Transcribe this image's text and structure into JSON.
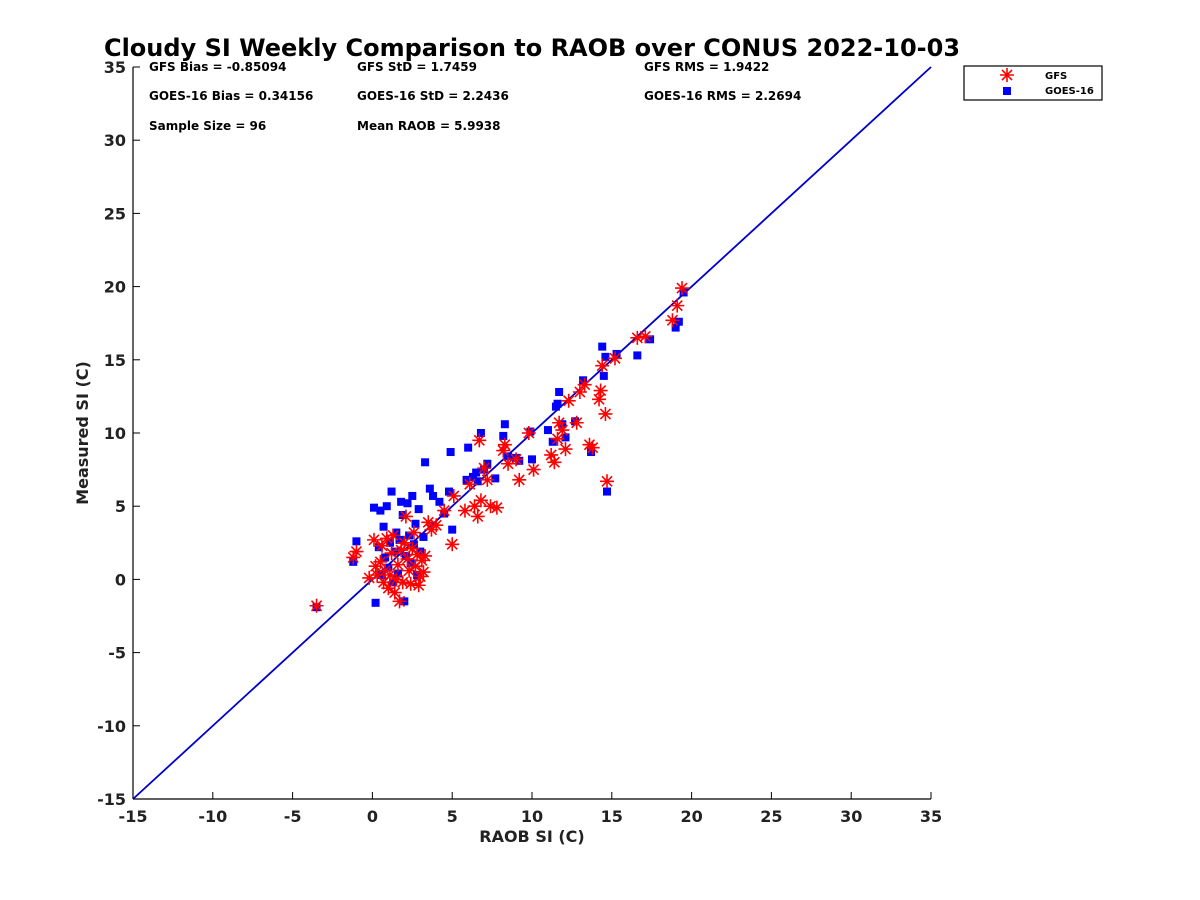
{
  "chart_data": {
    "type": "scatter",
    "title": "Cloudy SI Weekly Comparison to RAOB over CONUS 2022-10-03",
    "xlabel": "RAOB SI (C)",
    "ylabel": "Measured SI (C)",
    "xlim": [
      -15,
      35
    ],
    "ylim": [
      -15,
      35
    ],
    "xticks": [
      -15,
      -10,
      -5,
      0,
      5,
      10,
      15,
      20,
      25,
      30,
      35
    ],
    "yticks": [
      -15,
      -10,
      -5,
      0,
      5,
      10,
      15,
      20,
      25,
      30,
      35
    ],
    "grid": false,
    "legend_position": "outside-top-right",
    "reference_line": {
      "from": [
        -15,
        -15
      ],
      "to": [
        35,
        35
      ],
      "color": "#0000cc"
    },
    "stats": [
      {
        "text": "GFS Bias = -0.85094"
      },
      {
        "text": "GFS StD = 1.7459"
      },
      {
        "text": "GFS RMS = 1.9422"
      },
      {
        "text": "GOES-16 Bias = 0.34156"
      },
      {
        "text": "GOES-16 StD = 2.2436"
      },
      {
        "text": "GOES-16 RMS = 2.2694"
      },
      {
        "text": "Sample Size = 96"
      },
      {
        "text": "Mean RAOB = 5.9938"
      }
    ],
    "series": [
      {
        "name": "GFS",
        "marker": "asterisk",
        "color": "#ff0000",
        "points": [
          [
            -3.5,
            -1.8
          ],
          [
            -1.2,
            1.5
          ],
          [
            -1.0,
            1.9
          ],
          [
            -0.2,
            0.1
          ],
          [
            0.1,
            2.7
          ],
          [
            0.2,
            0.9
          ],
          [
            0.3,
            0.3
          ],
          [
            0.5,
            1.2
          ],
          [
            0.6,
            2.3
          ],
          [
            0.7,
            -0.2
          ],
          [
            0.8,
            0.6
          ],
          [
            0.9,
            2.8
          ],
          [
            1.0,
            -0.6
          ],
          [
            1.1,
            0.3
          ],
          [
            1.2,
            1.8
          ],
          [
            1.3,
            3.0
          ],
          [
            1.4,
            -0.9
          ],
          [
            1.5,
            0.0
          ],
          [
            1.6,
            1.0
          ],
          [
            1.7,
            -1.5
          ],
          [
            1.8,
            2.0
          ],
          [
            1.9,
            -0.2
          ],
          [
            2.0,
            2.5
          ],
          [
            2.1,
            4.3
          ],
          [
            2.2,
            1.4
          ],
          [
            2.3,
            0.6
          ],
          [
            2.4,
            -0.3
          ],
          [
            2.5,
            2.1
          ],
          [
            2.6,
            3.2
          ],
          [
            2.7,
            0.9
          ],
          [
            2.8,
            1.7
          ],
          [
            2.9,
            -0.4
          ],
          [
            3.0,
            0.2
          ],
          [
            3.1,
            1.3
          ],
          [
            3.2,
            0.5
          ],
          [
            3.3,
            1.6
          ],
          [
            3.5,
            3.9
          ],
          [
            3.7,
            3.4
          ],
          [
            4.0,
            3.7
          ],
          [
            4.5,
            4.7
          ],
          [
            5.0,
            2.4
          ],
          [
            5.1,
            5.7
          ],
          [
            5.8,
            4.7
          ],
          [
            6.1,
            6.5
          ],
          [
            6.4,
            5.0
          ],
          [
            6.6,
            4.3
          ],
          [
            6.7,
            9.5
          ],
          [
            6.8,
            5.4
          ],
          [
            7.0,
            7.6
          ],
          [
            7.2,
            6.8
          ],
          [
            7.4,
            5.0
          ],
          [
            7.8,
            4.9
          ],
          [
            8.2,
            8.8
          ],
          [
            8.3,
            9.2
          ],
          [
            8.5,
            7.9
          ],
          [
            9.0,
            8.2
          ],
          [
            9.2,
            6.8
          ],
          [
            9.8,
            10.0
          ],
          [
            10.1,
            7.5
          ],
          [
            11.2,
            8.5
          ],
          [
            11.4,
            8.0
          ],
          [
            11.6,
            9.6
          ],
          [
            11.7,
            10.7
          ],
          [
            11.9,
            10.2
          ],
          [
            12.1,
            8.9
          ],
          [
            12.3,
            12.2
          ],
          [
            12.8,
            10.7
          ],
          [
            13.0,
            12.8
          ],
          [
            13.3,
            13.3
          ],
          [
            13.6,
            9.2
          ],
          [
            13.8,
            9.0
          ],
          [
            14.2,
            12.3
          ],
          [
            14.3,
            12.9
          ],
          [
            14.4,
            14.6
          ],
          [
            14.6,
            11.3
          ],
          [
            14.7,
            6.7
          ],
          [
            15.2,
            15.1
          ],
          [
            16.6,
            16.5
          ],
          [
            17.1,
            16.6
          ],
          [
            18.8,
            17.7
          ],
          [
            19.1,
            18.7
          ],
          [
            19.4,
            19.9
          ]
        ]
      },
      {
        "name": "GOES-16",
        "marker": "square",
        "color": "#0000ff",
        "points": [
          [
            -3.5,
            -1.9
          ],
          [
            -1.2,
            1.2
          ],
          [
            -1.0,
            2.6
          ],
          [
            0.1,
            4.9
          ],
          [
            0.2,
            -1.6
          ],
          [
            0.4,
            2.2
          ],
          [
            0.5,
            4.7
          ],
          [
            0.6,
            0.3
          ],
          [
            0.7,
            3.6
          ],
          [
            0.8,
            1.5
          ],
          [
            0.9,
            5.0
          ],
          [
            1.0,
            0.8
          ],
          [
            1.1,
            2.5
          ],
          [
            1.2,
            6.0
          ],
          [
            1.3,
            -0.2
          ],
          [
            1.4,
            1.9
          ],
          [
            1.5,
            3.2
          ],
          [
            1.6,
            0.4
          ],
          [
            1.7,
            2.7
          ],
          [
            1.8,
            5.3
          ],
          [
            1.9,
            4.4
          ],
          [
            2.0,
            -1.5
          ],
          [
            2.1,
            1.6
          ],
          [
            2.2,
            5.2
          ],
          [
            2.3,
            3.0
          ],
          [
            2.4,
            1.1
          ],
          [
            2.5,
            5.7
          ],
          [
            2.6,
            2.4
          ],
          [
            2.7,
            3.8
          ],
          [
            2.8,
            0.3
          ],
          [
            2.9,
            4.8
          ],
          [
            3.0,
            1.9
          ],
          [
            3.2,
            2.9
          ],
          [
            3.3,
            8.0
          ],
          [
            3.6,
            6.2
          ],
          [
            3.8,
            5.7
          ],
          [
            4.2,
            5.3
          ],
          [
            4.5,
            4.5
          ],
          [
            4.8,
            6.0
          ],
          [
            4.9,
            8.7
          ],
          [
            5.0,
            3.4
          ],
          [
            5.9,
            6.8
          ],
          [
            6.0,
            9.0
          ],
          [
            6.3,
            7.0
          ],
          [
            6.5,
            7.3
          ],
          [
            6.6,
            6.7
          ],
          [
            6.8,
            10.0
          ],
          [
            7.0,
            7.5
          ],
          [
            7.2,
            7.9
          ],
          [
            7.7,
            6.9
          ],
          [
            8.2,
            9.8
          ],
          [
            8.3,
            10.6
          ],
          [
            8.5,
            8.4
          ],
          [
            9.0,
            8.3
          ],
          [
            9.2,
            8.1
          ],
          [
            9.9,
            10.1
          ],
          [
            10.0,
            8.2
          ],
          [
            11.0,
            10.2
          ],
          [
            11.3,
            9.4
          ],
          [
            11.5,
            11.8
          ],
          [
            11.6,
            12.0
          ],
          [
            11.7,
            12.8
          ],
          [
            11.9,
            10.6
          ],
          [
            12.1,
            9.7
          ],
          [
            12.7,
            10.8
          ],
          [
            13.2,
            13.6
          ],
          [
            13.7,
            8.7
          ],
          [
            14.4,
            15.9
          ],
          [
            14.5,
            13.9
          ],
          [
            14.6,
            15.2
          ],
          [
            14.7,
            6.0
          ],
          [
            15.3,
            15.4
          ],
          [
            16.6,
            15.3
          ],
          [
            17.4,
            16.4
          ],
          [
            19.0,
            17.2
          ],
          [
            19.2,
            17.6
          ],
          [
            19.5,
            19.6
          ]
        ]
      }
    ]
  }
}
